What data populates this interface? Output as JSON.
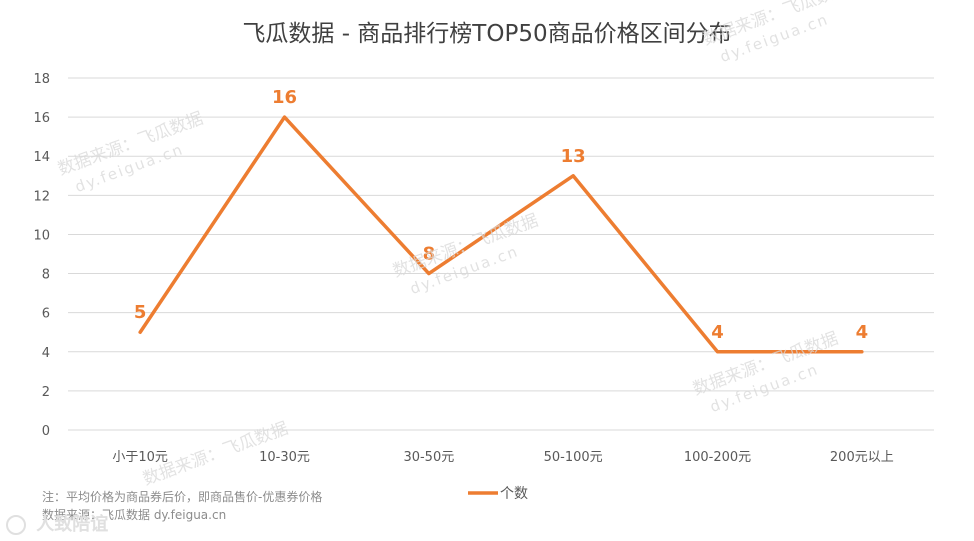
{
  "chart_data": {
    "type": "line",
    "title": "飞瓜数据 - 商品排行榜TOP50商品价格区间分布",
    "categories": [
      "小于10元",
      "10-30元",
      "30-50元",
      "50-100元",
      "100-200元",
      "200元以上"
    ],
    "series": [
      {
        "name": "个数",
        "values": [
          5,
          16,
          8,
          13,
          4,
          4
        ],
        "color": "#ED7D31"
      }
    ],
    "ylim": [
      0,
      18
    ],
    "yticks": [
      0,
      2,
      4,
      6,
      8,
      10,
      12,
      14,
      16,
      18
    ],
    "grid": true,
    "legend": "bottom",
    "data_labels": true
  },
  "notes": [
    "注：平均价格为商品券后价，即商品售价-优惠券价格",
    "数据来源：飞瓜数据 dy.feigua.cn"
  ],
  "watermarks": {
    "line1": "数据来源：飞瓜数据",
    "line2": "dy.feigua.cn"
  },
  "corner_logo": {
    "text": "人致陪谊",
    "icon": "camera-ring-icon"
  },
  "colors": {
    "gridline": "#D9D9D9",
    "axis_text": "#595959",
    "title_text": "#404040",
    "note_text": "#8C8C8C"
  }
}
